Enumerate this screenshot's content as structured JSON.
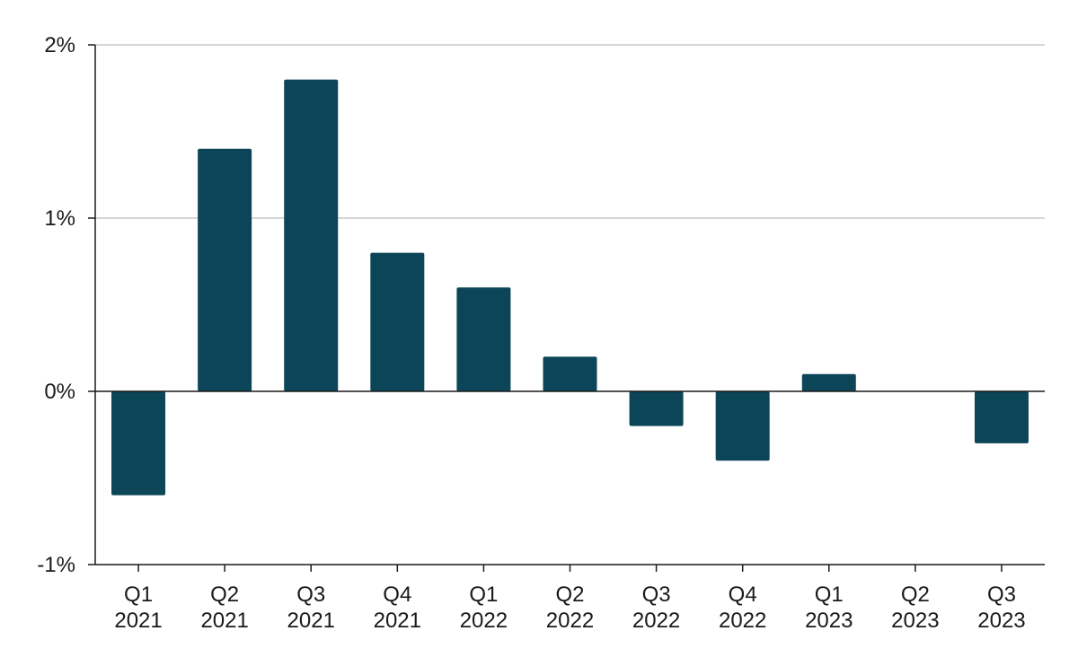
{
  "chart_data": {
    "type": "bar",
    "title": "",
    "xlabel": "",
    "ylabel": "",
    "categories": [
      [
        "Q1",
        "2021"
      ],
      [
        "Q2",
        "2021"
      ],
      [
        "Q3",
        "2021"
      ],
      [
        "Q4",
        "2021"
      ],
      [
        "Q1",
        "2022"
      ],
      [
        "Q2",
        "2022"
      ],
      [
        "Q3",
        "2022"
      ],
      [
        "Q4",
        "2022"
      ],
      [
        "Q1",
        "2023"
      ],
      [
        "Q2",
        "2023"
      ],
      [
        "Q3",
        "2023"
      ]
    ],
    "values": [
      -0.6,
      1.4,
      1.8,
      0.8,
      0.6,
      0.2,
      -0.2,
      -0.4,
      0.1,
      0.0,
      -0.3
    ],
    "value_unit": "%",
    "ylim": [
      -1,
      2
    ],
    "yticks": [
      {
        "value": -1,
        "label": "-1%"
      },
      {
        "value": 0,
        "label": "0%"
      },
      {
        "value": 1,
        "label": "1%"
      },
      {
        "value": 2,
        "label": "2%"
      }
    ],
    "grid": true,
    "bar_color": "#0c4558",
    "grid_color": "#c8c8c8",
    "axis_color": "#1a1a1a"
  }
}
